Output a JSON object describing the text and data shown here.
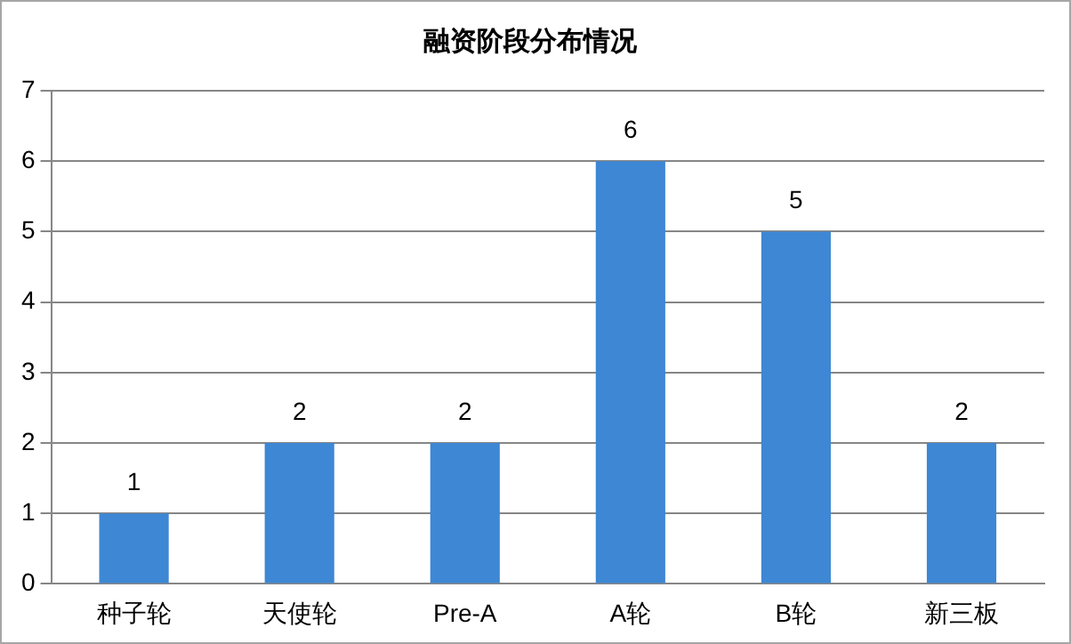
{
  "chart_data": {
    "type": "bar",
    "title": "融资阶段分布情况",
    "categories": [
      "种子轮",
      "天使轮",
      "Pre-A",
      "A轮",
      "B轮",
      "新三板"
    ],
    "values": [
      1,
      2,
      2,
      6,
      5,
      2
    ],
    "color": "#3d87d4",
    "ylim": [
      0,
      7
    ],
    "yticks": [
      0,
      1,
      2,
      3,
      4,
      5,
      6,
      7
    ],
    "grid": "y",
    "data_labels": true
  }
}
